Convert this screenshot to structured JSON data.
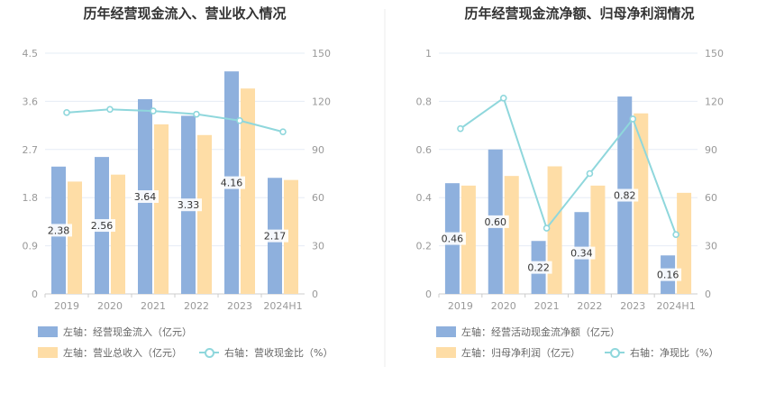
{
  "colors": {
    "bar1": "#8eb0dd",
    "bar2": "#fedda6",
    "line": "#8fd7dc",
    "axis_text": "#999999",
    "grid": "#e6ecf5",
    "title": "#333333"
  },
  "charts": [
    {
      "title": "历年经营现金流入、营业收入情况",
      "legend": {
        "bar1": "左轴：经营现金流入（亿元）",
        "bar2": "左轴：营业总收入（亿元）",
        "line": "右轴：营收现金比（%）"
      }
    },
    {
      "title": "历年经营现金流净额、归母净利润情况",
      "legend": {
        "bar1": "左轴：经营活动现金流净额（亿元）",
        "bar2": "左轴：归母净利润（亿元）",
        "line": "右轴：净现比（%）"
      }
    }
  ],
  "chart_data": [
    {
      "type": "bar",
      "title": "历年经营现金流入、营业收入情况",
      "categories": [
        "2019",
        "2020",
        "2021",
        "2022",
        "2023",
        "2024H1"
      ],
      "left_axis": {
        "ylim": [
          0,
          4.5
        ],
        "ticks": [
          "0",
          "0.9",
          "1.8",
          "2.7",
          "3.6",
          "4.5"
        ]
      },
      "right_axis": {
        "ylim": [
          0,
          150
        ],
        "ticks": [
          "0",
          "30",
          "60",
          "90",
          "120",
          "150"
        ]
      },
      "series": [
        {
          "name": "左轴：经营现金流入（亿元）",
          "type": "bar",
          "axis": "left",
          "values": [
            2.38,
            2.56,
            3.64,
            3.33,
            4.16,
            2.17
          ],
          "labels": [
            "2.38",
            "2.56",
            "3.64",
            "3.33",
            "4.16",
            "2.17"
          ]
        },
        {
          "name": "左轴：营业总收入（亿元）",
          "type": "bar",
          "axis": "left",
          "values": [
            2.1,
            2.23,
            3.17,
            2.97,
            3.84,
            2.13
          ]
        },
        {
          "name": "右轴：营收现金比（%）",
          "type": "line",
          "axis": "right",
          "values": [
            113,
            115,
            114,
            112,
            108,
            101
          ]
        }
      ],
      "grid": true,
      "legend_position": "bottom-left"
    },
    {
      "type": "bar",
      "title": "历年经营现金流净额、归母净利润情况",
      "categories": [
        "2019",
        "2020",
        "2021",
        "2022",
        "2023",
        "2024H1"
      ],
      "left_axis": {
        "ylim": [
          0,
          1
        ],
        "ticks": [
          "0",
          "0.2",
          "0.4",
          "0.6",
          "0.8",
          "1"
        ]
      },
      "right_axis": {
        "ylim": [
          0,
          150
        ],
        "ticks": [
          "0",
          "30",
          "60",
          "90",
          "120",
          "150"
        ]
      },
      "series": [
        {
          "name": "左轴：经营活动现金流净额（亿元）",
          "type": "bar",
          "axis": "left",
          "values": [
            0.46,
            0.6,
            0.22,
            0.34,
            0.82,
            0.16
          ],
          "labels": [
            "0.46",
            "0.60",
            "0.22",
            "0.34",
            "0.82",
            "0.16"
          ]
        },
        {
          "name": "左轴：归母净利润（亿元）",
          "type": "bar",
          "axis": "left",
          "values": [
            0.45,
            0.49,
            0.53,
            0.45,
            0.75,
            0.42
          ]
        },
        {
          "name": "右轴：净现比（%）",
          "type": "line",
          "axis": "right",
          "values": [
            103,
            122,
            41,
            75,
            109,
            37
          ]
        }
      ],
      "grid": true,
      "legend_position": "bottom-left"
    }
  ]
}
